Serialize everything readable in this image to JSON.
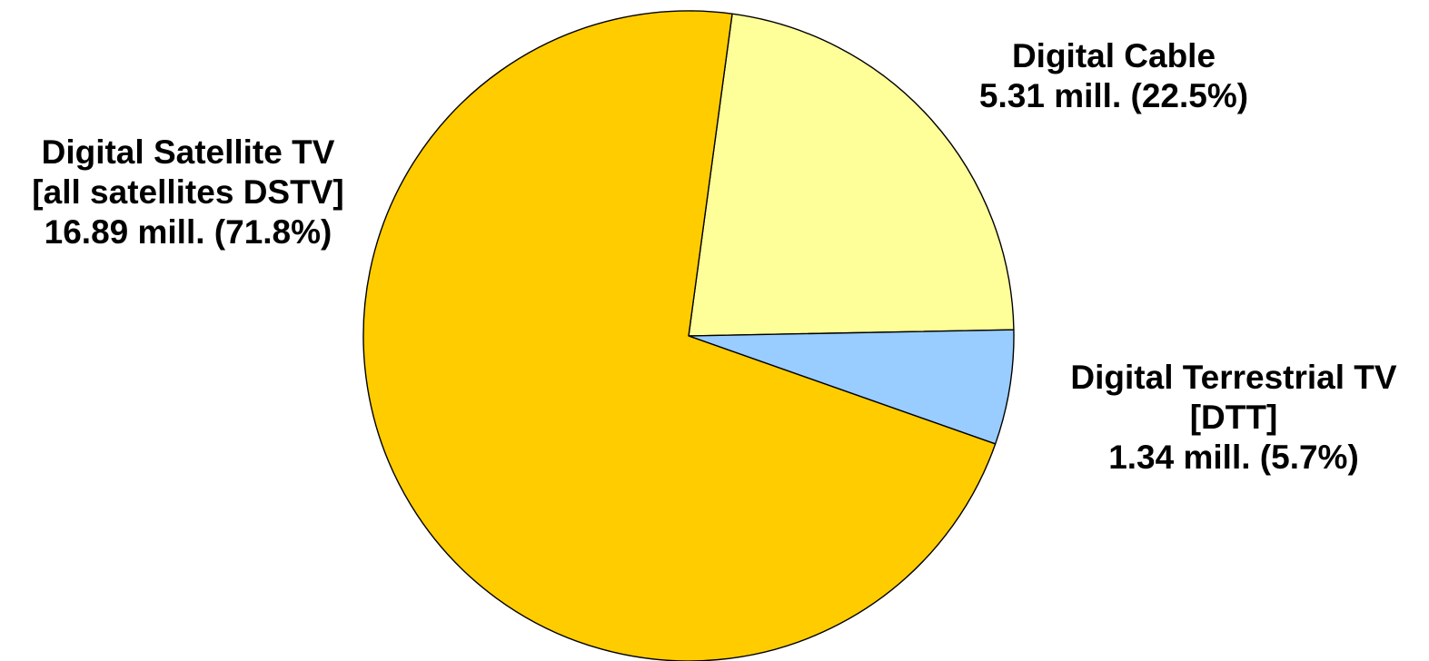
{
  "chart_data": {
    "type": "pie",
    "title": "",
    "unit": "mill.",
    "slices": [
      {
        "name": "Digital Cable",
        "value": 5.31,
        "percent": 22.5,
        "color": "#FFFF99",
        "label_lines": [
          "Digital Cable",
          "5.31 mill. (22.5%)"
        ]
      },
      {
        "name": "Digital Terrestrial TV [DTT]",
        "value": 1.34,
        "percent": 5.7,
        "color": "#99CCFF",
        "label_lines": [
          "Digital Terrestrial TV",
          "[DTT]",
          "1.34 mill. (5.7%)"
        ]
      },
      {
        "name": "Digital Satellite TV [all satellites DSTV]",
        "value": 16.89,
        "percent": 71.8,
        "color": "#FFCC00",
        "label_lines": [
          "Digital Satellite TV",
          "[all satellites DSTV]",
          "16.89 mill. (71.8%)"
        ]
      }
    ]
  }
}
